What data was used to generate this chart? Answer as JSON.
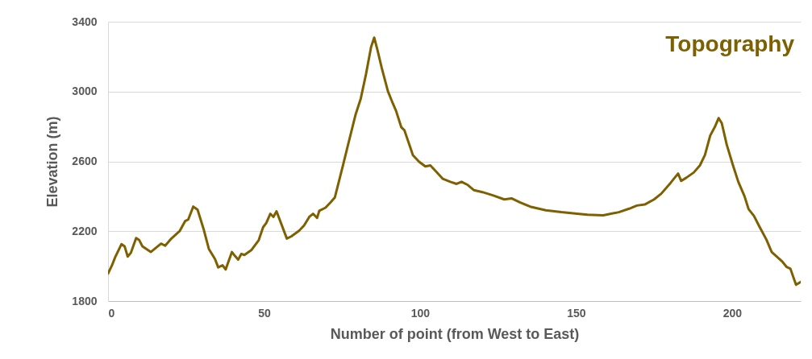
{
  "chart_data": {
    "type": "line",
    "title": "Topography",
    "xlabel": "Number of point (from West to East)",
    "ylabel": "Elevation (m)",
    "x": [
      0,
      1.2,
      2.3,
      4.3,
      5.3,
      6.3,
      7.3,
      9,
      10,
      11,
      13.7,
      17,
      18.3,
      20.3,
      23,
      24.7,
      25.7,
      27.3,
      28.7,
      30.7,
      32.3,
      34.3,
      35.3,
      36.7,
      37.7,
      39.7,
      40.7,
      41.7,
      42.7,
      43.7,
      46,
      48.3,
      49.7,
      50.7,
      52,
      53,
      54,
      57.3,
      58.7,
      61.2,
      62.8,
      64.5,
      65.7,
      67,
      67.7,
      69.7,
      71.3,
      72.7,
      75.3,
      77,
      79.3,
      81,
      82.7,
      84.3,
      85.3,
      86.3,
      87.7,
      89.7,
      91.3,
      92.3,
      94,
      95,
      97.7,
      99.7,
      101.7,
      103.3,
      105.3,
      107.3,
      109.7,
      111.7,
      113.3,
      115.3,
      117.3,
      120,
      123.3,
      127,
      129.3,
      132,
      135.3,
      140.3,
      145.3,
      150.3,
      153.7,
      158.7,
      161.2,
      163.7,
      167,
      169.5,
      172,
      175,
      177.3,
      180.3,
      182.7,
      183.7,
      185.3,
      187.7,
      189.7,
      191.3,
      193,
      194.5,
      195.7,
      196.7,
      198.3,
      200.3,
      202,
      204,
      205.3,
      207,
      208.7,
      211,
      212.7,
      216,
      217.5,
      218.7,
      220.5,
      222
    ],
    "series": [
      {
        "color": "#7f6000",
        "values": [
          1958,
          2002,
          2052,
          2126,
          2114,
          2055,
          2076,
          2161,
          2149,
          2114,
          2081,
          2129,
          2117,
          2158,
          2202,
          2258,
          2267,
          2341,
          2323,
          2208,
          2099,
          2040,
          1993,
          2005,
          1981,
          2081,
          2058,
          2037,
          2070,
          2064,
          2093,
          2149,
          2223,
          2247,
          2300,
          2282,
          2314,
          2158,
          2170,
          2202,
          2232,
          2282,
          2300,
          2276,
          2317,
          2335,
          2365,
          2394,
          2577,
          2701,
          2866,
          2960,
          3102,
          3255,
          3309,
          3241,
          3137,
          3002,
          2931,
          2890,
          2795,
          2778,
          2636,
          2598,
          2571,
          2577,
          2539,
          2500,
          2483,
          2471,
          2483,
          2465,
          2435,
          2424,
          2406,
          2382,
          2388,
          2365,
          2341,
          2320,
          2309,
          2300,
          2294,
          2291,
          2300,
          2309,
          2329,
          2347,
          2353,
          2382,
          2415,
          2477,
          2530,
          2488,
          2506,
          2536,
          2577,
          2636,
          2748,
          2798,
          2848,
          2819,
          2695,
          2577,
          2483,
          2400,
          2326,
          2288,
          2229,
          2152,
          2081,
          2028,
          1995,
          1985,
          1893,
          1910
        ]
      }
    ],
    "xlim": [
      0,
      222
    ],
    "xticks": [
      0,
      50,
      100,
      150,
      200
    ],
    "ylim": [
      1800,
      3400
    ],
    "yticks": [
      1800,
      2200,
      2600,
      3000,
      3400
    ],
    "grid": "y",
    "legend": false,
    "marker": "none",
    "line_style": "solid"
  }
}
